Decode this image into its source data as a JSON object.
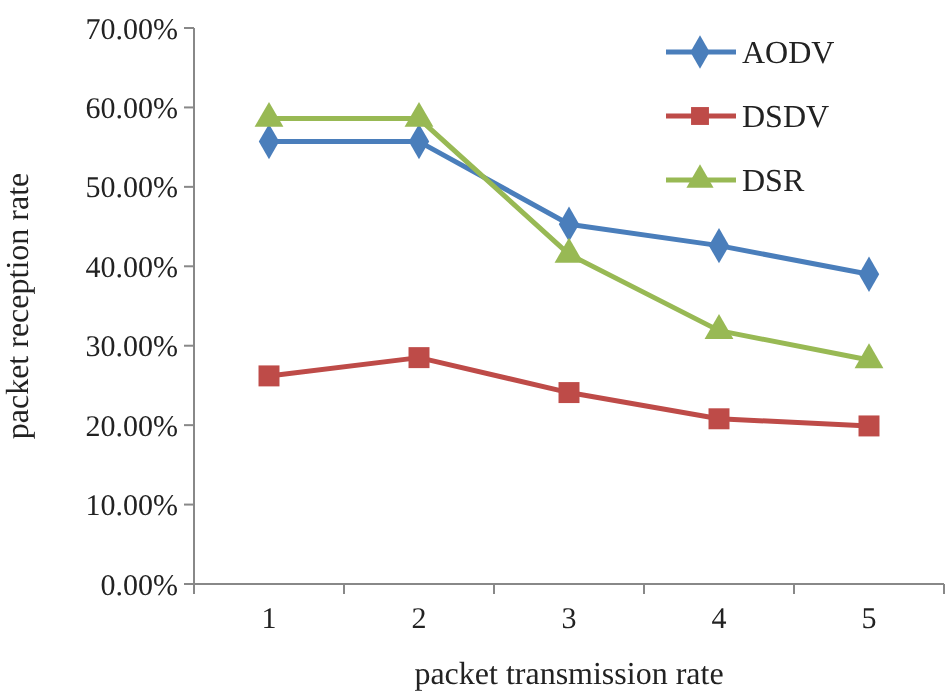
{
  "chart_data": {
    "type": "line",
    "xlabel": "packet transmission rate",
    "ylabel": "packet reception rate",
    "categories": [
      "1",
      "2",
      "3",
      "4",
      "5"
    ],
    "series": [
      {
        "name": "AODV",
        "color": "#4a7ebb",
        "marker": "diamond",
        "values": [
          55.7,
          55.7,
          45.3,
          42.6,
          39.0
        ]
      },
      {
        "name": "DSDV",
        "color": "#be4b48",
        "marker": "square",
        "values": [
          26.2,
          28.5,
          24.1,
          20.8,
          19.9
        ]
      },
      {
        "name": "DSR",
        "color": "#98b954",
        "marker": "triangle",
        "values": [
          58.6,
          58.6,
          41.5,
          31.9,
          28.2
        ]
      }
    ],
    "ylim": [
      0,
      70
    ],
    "yticks": [
      {
        "value": 0,
        "label": "0.00%"
      },
      {
        "value": 10,
        "label": "10.00%"
      },
      {
        "value": 20,
        "label": "20.00%"
      },
      {
        "value": 30,
        "label": "30.00%"
      },
      {
        "value": 40,
        "label": "40.00%"
      },
      {
        "value": 50,
        "label": "50.00%"
      },
      {
        "value": 60,
        "label": "60.00%"
      },
      {
        "value": 70,
        "label": "70.00%"
      }
    ],
    "grid": false,
    "legend": "top right"
  }
}
